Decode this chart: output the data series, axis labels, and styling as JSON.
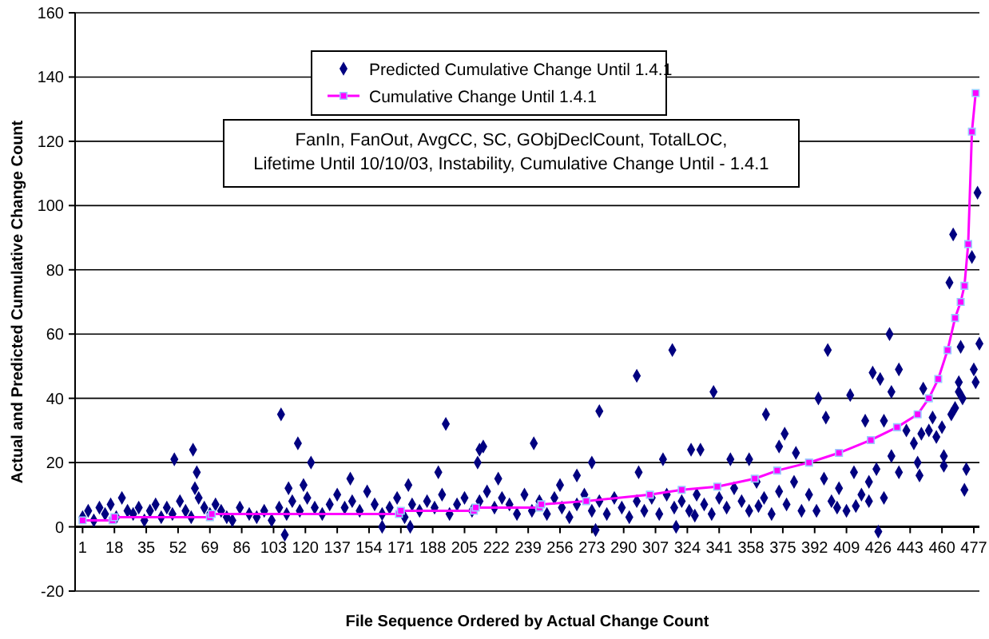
{
  "chart_data": {
    "type": "scatter",
    "xlabel": "File Sequence Ordered by Actual Change Count",
    "ylabel": "Actual and Predicted Cumulative Change Count",
    "xlim": [
      -3,
      480
    ],
    "xticks": [
      1,
      18,
      35,
      52,
      69,
      86,
      103,
      120,
      137,
      154,
      171,
      188,
      205,
      222,
      239,
      256,
      273,
      290,
      307,
      324,
      341,
      358,
      375,
      392,
      409,
      426,
      443,
      460,
      477
    ],
    "ylim": [
      -20,
      160
    ],
    "yticks": [
      -20,
      0,
      20,
      40,
      60,
      80,
      100,
      120,
      140,
      160
    ],
    "grid": "y",
    "legend": "top",
    "annotations": [
      "FanIn, FanOut, AvgCC, SC, GObjDeclCount, TotalLOC, Lifetime Until 10/10/03, Instability, Cumulative Change Until - 1.4.1"
    ],
    "series": [
      {
        "name": "Predicted Cumulative Change Until 1.4.1",
        "type": "scatter",
        "marker": "diamond",
        "color": "#000080",
        "x": [
          1,
          4,
          7,
          10,
          13,
          16,
          19,
          22,
          25,
          28,
          31,
          34,
          37,
          40,
          43,
          46,
          49,
          53,
          56,
          59,
          63,
          66,
          69,
          72,
          75,
          78,
          81,
          85,
          90,
          94,
          98,
          102,
          106,
          110,
          113,
          117,
          121,
          125,
          129,
          133,
          137,
          141,
          145,
          149,
          153,
          157,
          161,
          165,
          169,
          173,
          177,
          181,
          185,
          189,
          193,
          197,
          201,
          205,
          209,
          213,
          217,
          221,
          225,
          229,
          233,
          237,
          241,
          245,
          249,
          253,
          257,
          261,
          265,
          269,
          273,
          277,
          281,
          285,
          289,
          293,
          297,
          301,
          305,
          309,
          313,
          317,
          321,
          325,
          329,
          333,
          337,
          341,
          345,
          349,
          353,
          357,
          361,
          365,
          369,
          373,
          377,
          381,
          385,
          389,
          393,
          397,
          401,
          405,
          409,
          413,
          417,
          421,
          425,
          429,
          433,
          437,
          441,
          445,
          449,
          453,
          457,
          461,
          465,
          469,
          473,
          50,
          60,
          62,
          61,
          123,
          109,
          111,
          119,
          144,
          175,
          191,
          212,
          213,
          223,
          161,
          176,
          107,
          116,
          195,
          215,
          242,
          256,
          265,
          273,
          277,
          275,
          297,
          298,
          311,
          316,
          318,
          326,
          328,
          331,
          338,
          347,
          357,
          362,
          366,
          376,
          373,
          382,
          394,
          399,
          398,
          404,
          411,
          414,
          423,
          426,
          427,
          432,
          433,
          437,
          429,
          419,
          421,
          447,
          448,
          450,
          455,
          460,
          461,
          467,
          469,
          470,
          472,
          477,
          478,
          480,
          471,
          464,
          466,
          476,
          479
        ],
        "values": [
          3,
          5,
          2,
          6,
          4,
          7,
          3,
          9,
          5,
          4,
          6,
          2,
          5,
          7,
          3,
          6,
          4,
          8,
          5,
          3,
          9,
          6,
          4,
          7,
          5,
          3,
          2,
          6,
          4,
          3,
          5,
          2,
          6,
          4,
          8,
          5,
          9,
          6,
          4,
          7,
          10,
          6,
          8,
          5,
          11,
          7,
          4,
          6,
          9,
          3,
          7,
          5,
          8,
          6,
          10,
          4,
          7,
          9,
          5,
          8,
          11,
          6,
          9,
          7,
          4,
          10,
          5,
          8,
          4,
          9,
          6,
          3,
          7,
          10,
          5,
          8,
          4,
          9,
          6,
          3,
          8,
          5,
          9,
          4,
          10,
          6,
          8,
          5,
          10,
          7,
          4,
          9,
          6,
          12,
          8,
          5,
          14,
          9,
          4,
          11,
          7,
          14,
          5,
          10,
          5,
          15,
          8,
          12,
          5,
          17,
          10,
          14,
          18,
          9,
          22,
          17,
          30,
          26,
          29,
          30,
          28,
          22,
          35,
          42,
          18,
          21,
          24,
          17,
          12,
          20,
          -2.5,
          12,
          13,
          15,
          13,
          17,
          20,
          24,
          15,
          0,
          0,
          35,
          26,
          32,
          25,
          26,
          13,
          16,
          20,
          36,
          -1,
          47,
          17,
          21,
          55,
          0,
          24,
          3.5,
          24,
          42,
          21,
          21,
          6.5,
          35,
          29,
          25,
          23,
          40,
          55,
          34,
          6,
          41,
          6.5,
          48,
          -1.5,
          46,
          60,
          42,
          49,
          33,
          33,
          8,
          20,
          16,
          43,
          34,
          31,
          19,
          37,
          45,
          56,
          11.5,
          49,
          45,
          57,
          40,
          76,
          91,
          84,
          104
        ]
      },
      {
        "name": "Cumulative Change Until 1.4.1",
        "type": "line",
        "marker": "square",
        "line_style": "solid",
        "color": "#ff00ff",
        "x": [
          1,
          17,
          18,
          69,
          70,
          170,
          171,
          210,
          211,
          245,
          246,
          270,
          304,
          321,
          340,
          360,
          372,
          389,
          405,
          422,
          436,
          447,
          453,
          458,
          463,
          467,
          470,
          472,
          474,
          476,
          478
        ],
        "values": [
          2,
          2,
          3,
          3,
          4,
          4,
          5,
          5,
          6,
          6,
          7,
          8,
          10,
          11.5,
          12.5,
          15,
          17.5,
          20,
          23,
          27,
          31,
          35,
          40,
          46,
          55,
          65,
          70,
          75,
          88,
          123,
          135
        ]
      }
    ]
  }
}
